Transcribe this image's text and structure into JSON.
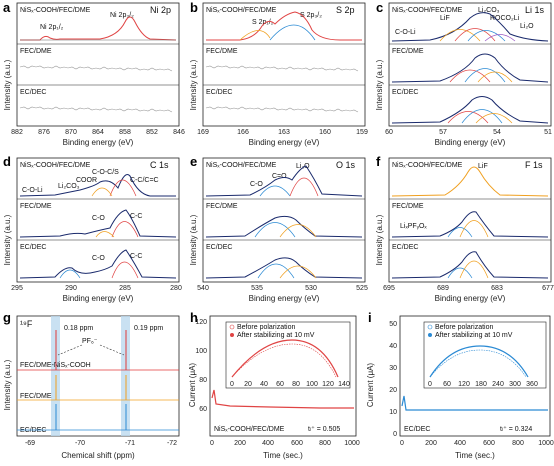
{
  "xps": {
    "samples": [
      "NiSₓ-COOH/FEC/DME",
      "FEC/DME",
      "EC/DEC"
    ],
    "ylabel": "Intensity (a.u.)",
    "xlabel": "Binding energy (eV)",
    "panels": [
      {
        "letter": "a",
        "element": "Ni 2p",
        "ticks": [
          "882",
          "876",
          "870",
          "864",
          "858",
          "852",
          "846"
        ],
        "annotations": [
          "Ni 2p₁/₂",
          "Ni 2p₃/₂"
        ]
      },
      {
        "letter": "b",
        "element": "S 2p",
        "ticks": [
          "169",
          "166",
          "163",
          "160",
          "159"
        ],
        "annotations": [
          "S 2p₁/₂",
          "S 2p₃/₂"
        ]
      },
      {
        "letter": "c",
        "element": "Li 1s",
        "ticks": [
          "60",
          "57",
          "54",
          "51"
        ],
        "annotations": [
          "Li₂CO₃",
          "LiF",
          "ROCO₂Li",
          "Li₂O",
          "C-O-Li"
        ]
      },
      {
        "letter": "d",
        "element": "C 1s",
        "ticks": [
          "295",
          "290",
          "285",
          "280"
        ],
        "annotations": [
          "C-O-C/S",
          "COOR",
          "Li₂CO₃",
          "C-C/C=C",
          "C-O-Li",
          "C-O",
          "C-C",
          "C-O",
          "C-C"
        ]
      },
      {
        "letter": "e",
        "element": "O 1s",
        "ticks": [
          "540",
          "535",
          "530",
          "525"
        ],
        "annotations": [
          "Li₂O",
          "C=O",
          "C-O"
        ]
      },
      {
        "letter": "f",
        "element": "F 1s",
        "ticks": [
          "695",
          "689",
          "683",
          "677"
        ],
        "annotations": [
          "LiF",
          "LiₓPFᵧOₓ"
        ]
      }
    ]
  },
  "nmr": {
    "letter": "g",
    "nucleus": "¹⁹F",
    "shift1": "0.18 ppm",
    "shift2": "0.19 ppm",
    "species": "PF₆⁻",
    "samples": [
      "FEC/DME-NiSₓ-COOH",
      "FEC/DME",
      "EC/DEC"
    ],
    "colors": [
      "#e03a3a",
      "#f0a020",
      "#2a8ad4"
    ],
    "ticks": [
      "-69",
      "-70",
      "-71",
      "-72"
    ],
    "xlabel": "Chemical shift (ppm)",
    "ylabel": "Intensity (a.u.)"
  },
  "polarization": [
    {
      "letter": "h",
      "color": "#e04444",
      "sample": "NiSₓ-COOH/FEC/DME",
      "t_label": "tₗ⁺ = 0.505",
      "yticks": [
        "60",
        "80",
        "100",
        "120"
      ],
      "xticks": [
        "0",
        "200",
        "400",
        "600",
        "800",
        "1000"
      ],
      "inset_yticks": [
        "0",
        "40",
        "80"
      ],
      "inset_xticks": [
        "0",
        "20",
        "40",
        "60",
        "80",
        "100",
        "120",
        "140"
      ],
      "legend": [
        "Before polarization",
        "After stabilizing at 10 mV"
      ],
      "xlabel": "Time (sec.)",
      "ylabel": "Current (μA)"
    },
    {
      "letter": "i",
      "color": "#2a8ad4",
      "sample": "EC/DEC",
      "t_label": "tₗ⁺ = 0.324",
      "yticks": [
        "0",
        "10",
        "20",
        "30",
        "40",
        "50"
      ],
      "xticks": [
        "0",
        "200",
        "400",
        "600",
        "800",
        "1000"
      ],
      "inset_yticks": [
        "0",
        "90",
        "180",
        "270"
      ],
      "inset_xticks": [
        "0",
        "60",
        "120",
        "180",
        "240",
        "300",
        "360"
      ],
      "legend": [
        "Before polarization",
        "After stabilizing at 10 mV"
      ],
      "xlabel": "Time (sec.)",
      "ylabel": "Current (μA)"
    }
  ]
}
